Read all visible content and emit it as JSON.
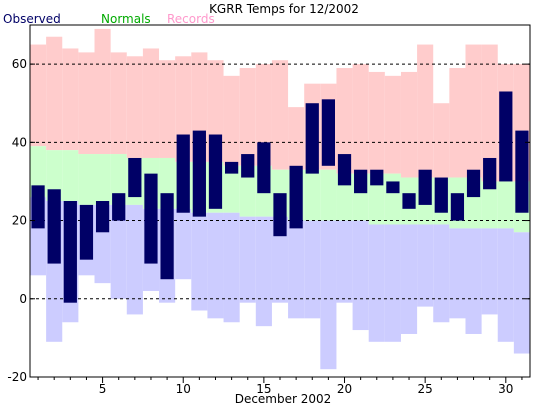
{
  "chart_data": {
    "type": "bar",
    "title": "KGRR Temps for 12/2002",
    "xlabel": "December 2002",
    "ylabel": "",
    "xlim": [
      0.5,
      31.5
    ],
    "ylim": [
      -20,
      70
    ],
    "y_ticks": [
      -20,
      0,
      20,
      40,
      60
    ],
    "x_ticks": [
      5,
      10,
      15,
      20,
      25,
      30
    ],
    "grid": {
      "dashed_y_at": [
        0,
        20,
        40,
        60
      ]
    },
    "legend_position": "top-left",
    "days": [
      1,
      2,
      3,
      4,
      5,
      6,
      7,
      8,
      9,
      10,
      11,
      12,
      13,
      14,
      15,
      16,
      17,
      18,
      19,
      20,
      21,
      22,
      23,
      24,
      25,
      26,
      27,
      28,
      29,
      30,
      31
    ],
    "series": [
      {
        "name": "Observed",
        "color": "#000066",
        "high": [
          29,
          28,
          25,
          24,
          25,
          27,
          36,
          32,
          27,
          42,
          43,
          42,
          35,
          37,
          40,
          27,
          34,
          50,
          51,
          37,
          33,
          33,
          30,
          27,
          33,
          31,
          27,
          33,
          36,
          53,
          43
        ],
        "low": [
          18,
          9,
          -1,
          10,
          17,
          20,
          26,
          9,
          5,
          22,
          21,
          23,
          32,
          31,
          27,
          16,
          18,
          32,
          34,
          29,
          27,
          29,
          27,
          23,
          24,
          22,
          20,
          26,
          28,
          30,
          22
        ]
      },
      {
        "name": "Normals",
        "color": "#00AA00",
        "fill": "#ccffcc",
        "high": [
          39,
          38,
          38,
          37,
          37,
          37,
          36,
          36,
          36,
          35,
          35,
          35,
          34,
          34,
          34,
          33,
          33,
          33,
          33,
          32,
          32,
          32,
          32,
          31,
          31,
          31,
          31,
          31,
          30,
          30,
          30
        ],
        "low": [
          26,
          25,
          25,
          24,
          24,
          24,
          24,
          23,
          23,
          23,
          22,
          22,
          22,
          21,
          21,
          21,
          20,
          20,
          20,
          20,
          20,
          19,
          19,
          19,
          19,
          19,
          18,
          18,
          18,
          18,
          17
        ]
      },
      {
        "name": "Records",
        "color": "#ff99cc",
        "fill_high": "#ffcccc",
        "fill_low": "#ccccff",
        "high": [
          65,
          67,
          64,
          63,
          69,
          63,
          62,
          64,
          61,
          62,
          63,
          61,
          57,
          59,
          60,
          61,
          49,
          55,
          55,
          59,
          60,
          58,
          57,
          58,
          65,
          50,
          59,
          65,
          65,
          60,
          60
        ],
        "low": [
          6,
          -11,
          -6,
          6,
          4,
          0,
          -4,
          2,
          -1,
          5,
          -3,
          -5,
          -6,
          -1,
          -7,
          -1,
          -5,
          -5,
          -18,
          -1,
          -8,
          -11,
          -11,
          -9,
          -2,
          -6,
          -5,
          -9,
          -4,
          -11,
          -14
        ]
      }
    ]
  }
}
